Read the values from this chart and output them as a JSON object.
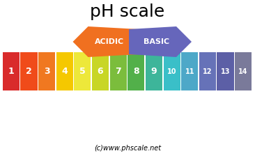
{
  "title": "pH scale",
  "subtitle": "(c)www.phscale.net",
  "ph_labels": [
    "1",
    "2",
    "3",
    "4",
    "5",
    "6",
    "7",
    "8",
    "9",
    "10",
    "11",
    "12",
    "13",
    "14"
  ],
  "ph_colors": [
    "#D92B2B",
    "#F04B1A",
    "#F07820",
    "#F5C800",
    "#EDE83A",
    "#C8D626",
    "#7BBD3C",
    "#52B04A",
    "#3DB59A",
    "#3ABFC8",
    "#4DA8C8",
    "#6672B8",
    "#5C5FA6",
    "#7A7A9A"
  ],
  "acidic_color": "#F07020",
  "basic_color": "#6666BB",
  "acidic_text": "ACIDIC",
  "basic_text": "BASIC",
  "background_color": "#FFFFFF",
  "title_fontsize": 18,
  "subtitle_fontsize": 7,
  "bar_label_fontsize_small": 7,
  "bar_label_fontsize_large": 9
}
